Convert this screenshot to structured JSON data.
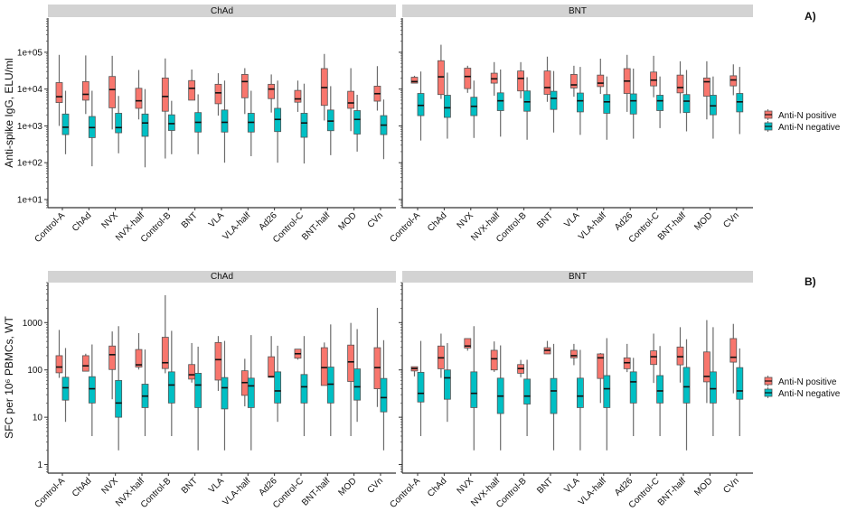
{
  "legend": {
    "items": [
      {
        "label": "Anti-N positive",
        "color": "#F8766D"
      },
      {
        "label": "Anti-N negative",
        "color": "#00BFC4"
      }
    ]
  },
  "chart_data": [
    {
      "type": "box",
      "panel_label": "A)",
      "ylabel": "Anti-spike IgG, ELU/ml",
      "yscale": "log",
      "ylim": [
        6,
        850000
      ],
      "yticks": [
        {
          "value": 10,
          "label": "1e+01"
        },
        {
          "value": 100,
          "label": "1e+02"
        },
        {
          "value": 1000,
          "label": "1e+03"
        },
        {
          "value": 10000,
          "label": "1e+04"
        },
        {
          "value": 100000,
          "label": "1e+05"
        }
      ],
      "categories": [
        "Control-A",
        "ChAd",
        "NVX",
        "NVX-half",
        "Control-B",
        "BNT",
        "VLA",
        "VLA-half",
        "Ad26",
        "Control-C",
        "BNT-half",
        "MOD",
        "CVn"
      ],
      "box_format": [
        "whisker_low",
        "q1",
        "median",
        "q3",
        "whisker_high"
      ],
      "facets": [
        {
          "title": "ChAd",
          "series": [
            {
              "name": "Anti-N positive",
              "values": [
                [
                  1000,
                  4300,
                  6200,
                  15000,
                  85000
                ],
                [
                  2100,
                  5000,
                  7200,
                  16000,
                  82000
                ],
                [
                  800,
                  3100,
                  9700,
                  22000,
                  80000
                ],
                [
                  1500,
                  3000,
                  4800,
                  10500,
                  33000
                ],
                [
                  130,
                  2500,
                  6300,
                  20000,
                  68000
                ],
                [
                  5000,
                  5000,
                  10500,
                  17000,
                  34000
                ],
                [
                  1900,
                  4000,
                  7900,
                  13500,
                  27000
                ],
                [
                  2100,
                  5800,
                  16000,
                  25000,
                  37000
                ],
                [
                  2300,
                  5500,
                  10000,
                  13500,
                  25000
                ],
                [
                  2400,
                  4400,
                  5400,
                  9200,
                  17000
                ],
                [
                  1400,
                  3600,
                  11000,
                  36000,
                  90000
                ],
                [
                  720,
                  3000,
                  4200,
                  8700,
                  37000
                ],
                [
                  2600,
                  4700,
                  7500,
                  12000,
                  42000
                ]
              ]
            },
            {
              "name": "Anti-N negative",
              "values": [
                [
                  170,
                  580,
                  920,
                  2100,
                  9000
                ],
                [
                  80,
                  480,
                  900,
                  1800,
                  9000
                ],
                [
                  180,
                  650,
                  900,
                  2200,
                  6500
                ],
                [
                  75,
                  520,
                  1200,
                  2100,
                  10000
                ],
                [
                  170,
                  750,
                  1150,
                  2000,
                  4800
                ],
                [
                  170,
                  680,
                  1250,
                  2300,
                  7200
                ],
                [
                  100,
                  680,
                  1250,
                  2700,
                  17000
                ],
                [
                  150,
                  680,
                  1250,
                  2200,
                  9000
                ],
                [
                  100,
                  700,
                  1500,
                  3000,
                  17000
                ],
                [
                  95,
                  490,
                  1200,
                  2200,
                  14000
                ],
                [
                  160,
                  740,
                  1350,
                  2700,
                  12000
                ],
                [
                  200,
                  600,
                  1500,
                  2600,
                  7000
                ],
                [
                  125,
                  580,
                  1050,
                  1900,
                  5200
                ]
              ]
            }
          ]
        },
        {
          "title": "BNT",
          "series": [
            {
              "name": "Anti-N positive",
              "values": [
                [
                  14500,
                  14500,
                  16000,
                  21000,
                  23000
                ],
                [
                  5400,
                  7100,
                  21500,
                  59000,
                  160000
                ],
                [
                  7900,
                  10300,
                  22000,
                  37000,
                  43000
                ],
                [
                  6600,
                  14500,
                  19000,
                  27000,
                  54000
                ],
                [
                  5600,
                  8900,
                  19500,
                  31000,
                  54000
                ],
                [
                  4500,
                  7200,
                  11000,
                  31000,
                  76000
                ],
                [
                  6200,
                  10700,
                  13000,
                  25000,
                  43000
                ],
                [
                  7400,
                  11700,
                  14500,
                  24000,
                  67000
                ],
                [
                  2400,
                  7600,
                  16500,
                  36000,
                  85000
                ],
                [
                  6000,
                  12200,
                  17500,
                  29000,
                  80000
                ],
                [
                  2200,
                  7900,
                  11000,
                  24000,
                  57000
                ],
                [
                  1500,
                  6400,
                  15800,
                  20000,
                  57000
                ],
                [
                  6800,
                  12200,
                  17700,
                  23000,
                  47000
                ]
              ]
            },
            {
              "name": "Anti-N negative",
              "values": [
                [
                  400,
                  1900,
                  3600,
                  7600,
                  30000
                ],
                [
                  450,
                  1700,
                  3100,
                  6800,
                  28000
                ],
                [
                  470,
                  1900,
                  3400,
                  6000,
                  17000
                ],
                [
                  510,
                  2600,
                  4800,
                  7900,
                  34000
                ],
                [
                  420,
                  2500,
                  4500,
                  8900,
                  21000
                ],
                [
                  660,
                  2800,
                  5600,
                  8700,
                  31000
                ],
                [
                  570,
                  2400,
                  4800,
                  7800,
                  40000
                ],
                [
                  420,
                  2200,
                  4500,
                  7100,
                  22000
                ],
                [
                  450,
                  2100,
                  4800,
                  7400,
                  36000
                ],
                [
                  870,
                  2600,
                  4800,
                  6800,
                  22000
                ],
                [
                  710,
                  2300,
                  4700,
                  7100,
                  33000
                ],
                [
                  450,
                  2000,
                  3500,
                  6800,
                  22000
                ],
                [
                  600,
                  2400,
                  4500,
                  7600,
                  40000
                ]
              ]
            }
          ]
        }
      ]
    },
    {
      "type": "box",
      "panel_label": "B)",
      "ylabel": "SFC per 10⁶ PBMCs, WT",
      "yscale": "log",
      "ylim": [
        0.66,
        7000
      ],
      "yticks": [
        {
          "value": 1,
          "label": "1"
        },
        {
          "value": 10,
          "label": "10"
        },
        {
          "value": 100,
          "label": "100"
        },
        {
          "value": 1000,
          "label": "1000"
        }
      ],
      "categories": [
        "Control-A",
        "ChAd",
        "NVX",
        "NVX-half",
        "Control-B",
        "BNT",
        "VLA",
        "VLA-half",
        "Ad26",
        "Control-C",
        "BNT-half",
        "MOD",
        "CVn"
      ],
      "box_format": [
        "whisker_low",
        "q1",
        "median",
        "q3",
        "whisker_high"
      ],
      "facets": [
        {
          "title": "ChAd",
          "series": [
            {
              "name": "Anti-N positive",
              "values": [
                [
                  68,
                  87,
                  115,
                  200,
                  700
                ],
                [
                  94,
                  94,
                  122,
                  200,
                  220
                ],
                [
                  24,
                  102,
                  210,
                  320,
                  650
                ],
                [
                  102,
                  115,
                  128,
                  270,
                  600
                ],
                [
                  85,
                  107,
                  142,
                  490,
                  3800
                ],
                [
                  54,
                  64,
                  79,
                  130,
                  370
                ],
                [
                  36,
                  61,
                  165,
                  380,
                  520
                ],
                [
                  17,
                  29,
                  54,
                  96,
                  172
                ],
                [
                  70,
                  70,
                  72,
                  190,
                  520
                ],
                [
                  165,
                  177,
                  220,
                  275,
                  275
                ],
                [
                  47,
                  47,
                  112,
                  295,
                  380
                ],
                [
                  4,
                  57,
                  148,
                  335,
                  985
                ],
                [
                  16.5,
                  40,
                  112,
                  295,
                  2050
                ]
              ]
            },
            {
              "name": "Anti-N negative",
              "values": [
                [
                  8,
                  23,
                  42,
                  70,
                  290
                ],
                [
                  4,
                  20,
                  40,
                  72,
                  345
                ],
                [
                  2,
                  10,
                  20,
                  60,
                  840
                ],
                [
                  4,
                  16,
                  28,
                  50,
                  270
                ],
                [
                  4,
                  20,
                  48,
                  91,
                  670
                ],
                [
                  2,
                  16,
                  48,
                  85,
                  310
                ],
                [
                  2,
                  15,
                  42,
                  69,
                  410
                ],
                [
                  2,
                  16,
                  46,
                  67,
                  545
                ],
                [
                  8,
                  20,
                  36,
                  91,
                  325
                ],
                [
                  4,
                  20,
                  44,
                  80,
                  520
                ],
                [
                  4,
                  20,
                  50,
                  115,
                  915
                ],
                [
                  8,
                  23,
                  44,
                  105,
                  730
                ],
                [
                  2,
                  13,
                  26,
                  66,
                  425
                ]
              ]
            }
          ]
        },
        {
          "title": "BNT",
          "series": [
            {
              "name": "Anti-N positive",
              "values": [
                [
                  73,
                  95,
                  107,
                  117,
                  117
                ],
                [
                  68,
                  106,
                  180,
                  320,
                  585
                ],
                [
                  255,
                  290,
                  320,
                  460,
                  460
                ],
                [
                  91,
                  100,
                  172,
                  260,
                  400
                ],
                [
                  70,
                  85,
                  107,
                  130,
                  163
                ],
                [
                  218,
                  218,
                  260,
                  295,
                  410
                ],
                [
                  126,
                  180,
                  200,
                  260,
                  355
                ],
                [
                  20,
                  66,
                  180,
                  218,
                  228
                ],
                [
                  90,
                  106,
                  142,
                  180,
                  355
                ],
                [
                  53,
                  130,
                  190,
                  253,
                  585
                ],
                [
                  54,
                  128,
                  190,
                  305,
                  800
                ],
                [
                  20,
                  56,
                  73,
                  240,
                  1130
                ],
                [
                  32,
                  146,
                  185,
                  460,
                  940
                ]
              ]
            },
            {
              "name": "Anti-N negative",
              "values": [
                [
                  4,
                  21,
                  32,
                  89,
                  410
                ],
                [
                  8,
                  24,
                  68,
                  100,
                  370
                ],
                [
                  2,
                  16,
                  32,
                  91,
                  840
                ],
                [
                  2,
                  12,
                  28,
                  67,
                  330
                ],
                [
                  4,
                  19,
                  28,
                  64,
                  164
                ],
                [
                  2,
                  12,
                  36,
                  66,
                  355
                ],
                [
                  2,
                  16,
                  28,
                  67,
                  265
                ],
                [
                  2,
                  16,
                  40,
                  76,
                  470
                ],
                [
                  4,
                  20,
                  56,
                  91,
                  180
                ],
                [
                  4,
                  20,
                  36,
                  76,
                  320
                ],
                [
                  2,
                  20,
                  44,
                  113,
                  445
                ],
                [
                  4,
                  20,
                  40,
                  91,
                  800
                ],
                [
                  4,
                  24,
                  36,
                  112,
                  285
                ]
              ]
            }
          ]
        }
      ]
    }
  ]
}
